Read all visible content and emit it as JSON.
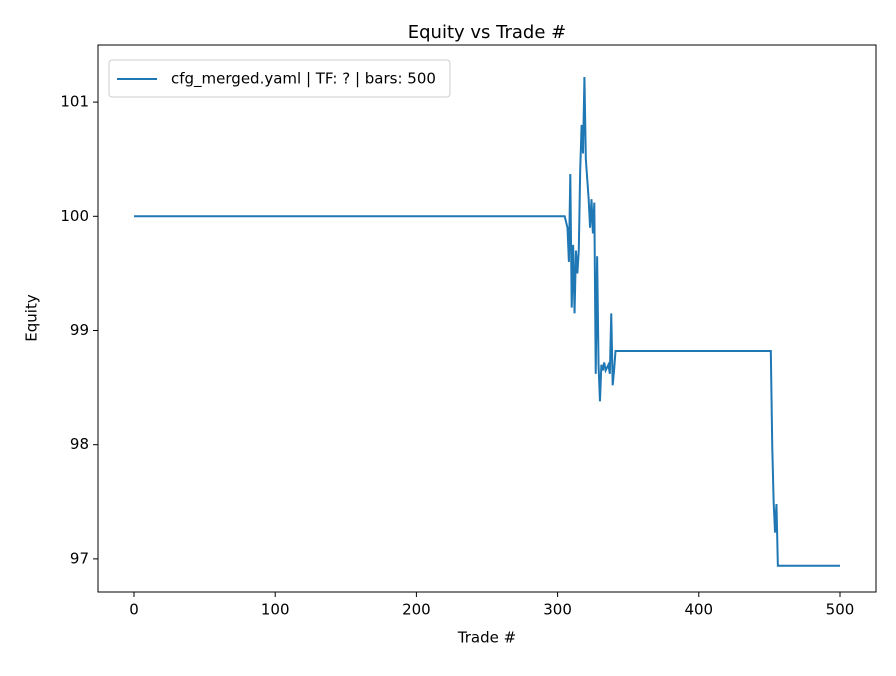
{
  "chart_data": {
    "type": "line",
    "title": "Equity vs Trade #",
    "x_label": "Trade #",
    "y_label": "Equity",
    "x": [
      0,
      305,
      307,
      308,
      309,
      310,
      311,
      312,
      313,
      314,
      315,
      316,
      317,
      318,
      319,
      320,
      322,
      323,
      324,
      325,
      326,
      327,
      328,
      329,
      330,
      331,
      332,
      333,
      334,
      336,
      337,
      338,
      339,
      340,
      341,
      451,
      452,
      453,
      454,
      455,
      456,
      500
    ],
    "series": [
      {
        "name": "cfg_merged.yaml | TF: ? | bars: 500",
        "color": "#1f77b4",
        "values": [
          100,
          100,
          99.9,
          99.6,
          100.37,
          99.2,
          99.75,
          99.15,
          99.7,
          99.5,
          99.7,
          100.4,
          100.8,
          100.55,
          101.22,
          100.5,
          100.15,
          99.9,
          100.15,
          99.85,
          100.12,
          98.62,
          99.65,
          98.7,
          98.38,
          98.7,
          98.65,
          98.72,
          98.65,
          98.7,
          98.62,
          99.15,
          98.52,
          98.65,
          98.82,
          98.82,
          98.0,
          97.5,
          97.23,
          97.48,
          96.94,
          96.94
        ]
      }
    ],
    "xlim": [
      -25.5,
      525.5
    ],
    "ylim": [
      96.71,
      101.5
    ],
    "xticks": [
      0,
      100,
      200,
      300,
      400,
      500
    ],
    "yticks": [
      97,
      98,
      99,
      100,
      101
    ],
    "grid": false,
    "legend": "upper left"
  }
}
